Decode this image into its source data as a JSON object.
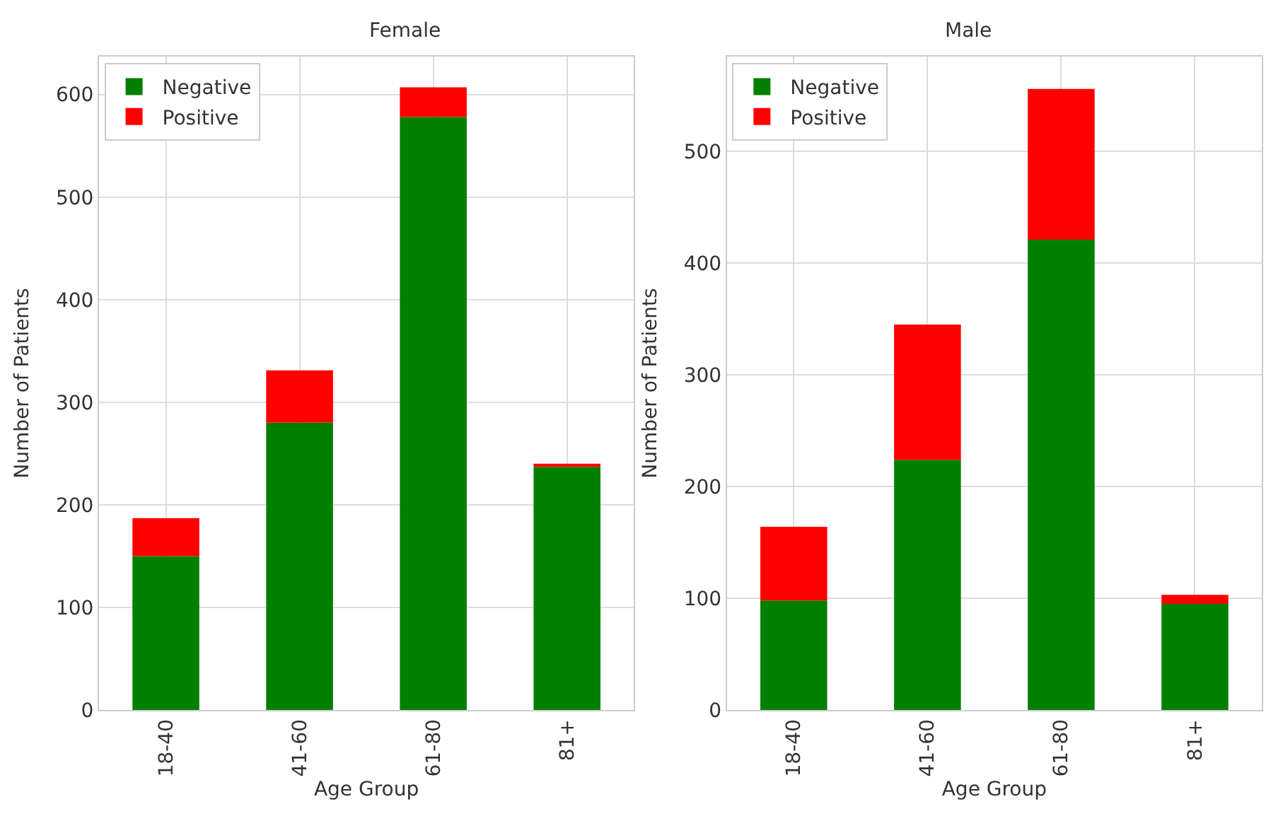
{
  "chart_data": [
    {
      "type": "bar",
      "title": "Female",
      "xlabel": "Age Group",
      "ylabel": "Number of Patients",
      "categories": [
        "18-40",
        "41-60",
        "61-80",
        "81+"
      ],
      "stacked": true,
      "series": [
        {
          "name": "Negative",
          "color": "#008000",
          "values": [
            150,
            280,
            578,
            237
          ]
        },
        {
          "name": "Positive",
          "color": "#ff0000",
          "values": [
            37,
            51,
            29,
            3
          ]
        }
      ],
      "ylim": [
        0,
        637
      ],
      "yticks": [
        0,
        100,
        200,
        300,
        400,
        500,
        600
      ],
      "grid": true,
      "legend": "top left"
    },
    {
      "type": "bar",
      "title": "Male",
      "xlabel": "Age Group",
      "ylabel": "Number of Patients",
      "categories": [
        "18-40",
        "41-60",
        "61-80",
        "81+"
      ],
      "stacked": true,
      "series": [
        {
          "name": "Negative",
          "color": "#008000",
          "values": [
            98,
            224,
            421,
            95
          ]
        },
        {
          "name": "Positive",
          "color": "#ff0000",
          "values": [
            66,
            121,
            135,
            8
          ]
        }
      ],
      "ylim": [
        0,
        585
      ],
      "yticks": [
        0,
        100,
        200,
        300,
        400,
        500
      ],
      "grid": true,
      "legend": "top left"
    }
  ]
}
